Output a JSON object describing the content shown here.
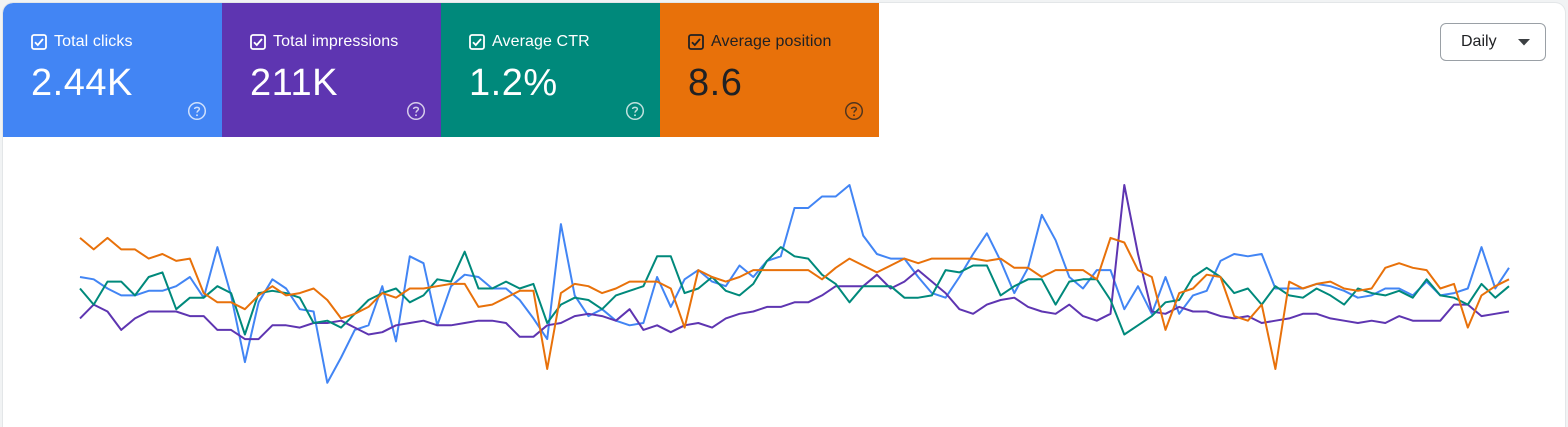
{
  "metrics": [
    {
      "label": "Total clicks",
      "value": "2.44K",
      "color": "#4285f4",
      "checked": true,
      "dark_text": false
    },
    {
      "label": "Total impressions",
      "value": "211K",
      "color": "#5e35b1",
      "checked": true,
      "dark_text": false
    },
    {
      "label": "Average CTR",
      "value": "1.2%",
      "color": "#00897b",
      "checked": true,
      "dark_text": false
    },
    {
      "label": "Average position",
      "value": "8.6",
      "color": "#e8710a",
      "checked": true,
      "dark_text": true
    }
  ],
  "icons": {
    "checkbox": "checkbox-checked-icon",
    "help": "help-circle-icon",
    "dropdown": "caret-down-icon"
  },
  "period_select": {
    "selected": "Daily"
  },
  "chart_data": {
    "type": "line",
    "title": "",
    "grid": false,
    "legend": "none",
    "ylim": [
      0,
      1
    ],
    "series": [
      {
        "metric": "Total clicks",
        "color": "#4285f4",
        "values": [
          0.6,
          0.59,
          0.55,
          0.52,
          0.52,
          0.54,
          0.54,
          0.56,
          0.6,
          0.51,
          0.73,
          0.52,
          0.23,
          0.49,
          0.59,
          0.55,
          0.46,
          0.45,
          0.14,
          0.25,
          0.37,
          0.39,
          0.56,
          0.32,
          0.69,
          0.66,
          0.39,
          0.56,
          0.61,
          0.6,
          0.55,
          0.55,
          0.5,
          0.42,
          0.33,
          0.83,
          0.52,
          0.43,
          0.46,
          0.41,
          0.39,
          0.4,
          0.6,
          0.47,
          0.59,
          0.63,
          0.58,
          0.56,
          0.65,
          0.6,
          0.67,
          0.69,
          0.9,
          0.9,
          0.95,
          0.95,
          1.0,
          0.78,
          0.7,
          0.68,
          0.68,
          0.6,
          0.53,
          0.51,
          0.6,
          0.7,
          0.79,
          0.67,
          0.53,
          0.64,
          0.87,
          0.76,
          0.6,
          0.55,
          0.63,
          0.63,
          0.46,
          0.56,
          0.44,
          0.6,
          0.44,
          0.52,
          0.54,
          0.67,
          0.7,
          0.69,
          0.7,
          0.55,
          0.55,
          0.55,
          0.57,
          0.56,
          0.54,
          0.51,
          0.52,
          0.55,
          0.55,
          0.52,
          0.58,
          0.52,
          0.53,
          0.55,
          0.73,
          0.55,
          0.64
        ]
      },
      {
        "metric": "Total impressions",
        "color": "#5e35b1",
        "values": [
          0.42,
          0.48,
          0.45,
          0.37,
          0.42,
          0.45,
          0.45,
          0.45,
          0.43,
          0.43,
          0.37,
          0.37,
          0.33,
          0.33,
          0.39,
          0.39,
          0.38,
          0.4,
          0.4,
          0.41,
          0.38,
          0.35,
          0.36,
          0.39,
          0.4,
          0.41,
          0.39,
          0.39,
          0.4,
          0.41,
          0.41,
          0.4,
          0.34,
          0.34,
          0.39,
          0.4,
          0.43,
          0.44,
          0.43,
          0.41,
          0.46,
          0.37,
          0.39,
          0.36,
          0.39,
          0.4,
          0.38,
          0.42,
          0.44,
          0.45,
          0.47,
          0.47,
          0.49,
          0.49,
          0.52,
          0.56,
          0.56,
          0.56,
          0.61,
          0.55,
          0.58,
          0.63,
          0.58,
          0.53,
          0.46,
          0.44,
          0.48,
          0.5,
          0.51,
          0.47,
          0.45,
          0.44,
          0.48,
          0.43,
          0.41,
          0.44,
          1.0,
          0.7,
          0.45,
          0.44,
          0.47,
          0.45,
          0.45,
          0.43,
          0.42,
          0.43,
          0.4,
          0.41,
          0.42,
          0.44,
          0.44,
          0.42,
          0.41,
          0.4,
          0.41,
          0.4,
          0.43,
          0.41,
          0.41,
          0.41,
          0.48,
          0.48,
          0.43,
          0.44,
          0.45
        ]
      },
      {
        "metric": "Average CTR",
        "color": "#00897b",
        "values": [
          0.55,
          0.48,
          0.58,
          0.58,
          0.52,
          0.6,
          0.62,
          0.46,
          0.51,
          0.51,
          0.56,
          0.53,
          0.35,
          0.53,
          0.54,
          0.53,
          0.51,
          0.4,
          0.41,
          0.38,
          0.44,
          0.5,
          0.53,
          0.55,
          0.49,
          0.52,
          0.59,
          0.58,
          0.71,
          0.55,
          0.55,
          0.58,
          0.55,
          0.57,
          0.4,
          0.48,
          0.51,
          0.5,
          0.46,
          0.52,
          0.54,
          0.56,
          0.69,
          0.69,
          0.53,
          0.55,
          0.6,
          0.54,
          0.52,
          0.57,
          0.67,
          0.73,
          0.69,
          0.68,
          0.61,
          0.57,
          0.49,
          0.56,
          0.56,
          0.56,
          0.51,
          0.51,
          0.52,
          0.63,
          0.62,
          0.65,
          0.65,
          0.52,
          0.56,
          0.59,
          0.59,
          0.48,
          0.58,
          0.59,
          0.59,
          0.5,
          0.35,
          0.39,
          0.43,
          0.49,
          0.5,
          0.6,
          0.64,
          0.6,
          0.53,
          0.55,
          0.48,
          0.56,
          0.52,
          0.51,
          0.55,
          0.52,
          0.48,
          0.55,
          0.53,
          0.52,
          0.54,
          0.51,
          0.59,
          0.52,
          0.51,
          0.48,
          0.57,
          0.51,
          0.56
        ]
      },
      {
        "metric": "Average position",
        "color": "#e8710a",
        "values": [
          0.77,
          0.72,
          0.77,
          0.72,
          0.72,
          0.68,
          0.7,
          0.67,
          0.68,
          0.53,
          0.49,
          0.49,
          0.46,
          0.52,
          0.56,
          0.52,
          0.53,
          0.55,
          0.5,
          0.42,
          0.44,
          0.47,
          0.53,
          0.51,
          0.55,
          0.55,
          0.56,
          0.57,
          0.57,
          0.47,
          0.48,
          0.51,
          0.54,
          0.54,
          0.2,
          0.53,
          0.57,
          0.56,
          0.53,
          0.55,
          0.58,
          0.58,
          0.58,
          0.55,
          0.38,
          0.63,
          0.6,
          0.58,
          0.6,
          0.63,
          0.63,
          0.63,
          0.63,
          0.63,
          0.59,
          0.64,
          0.68,
          0.65,
          0.62,
          0.65,
          0.68,
          0.66,
          0.68,
          0.68,
          0.68,
          0.68,
          0.67,
          0.68,
          0.64,
          0.64,
          0.6,
          0.63,
          0.63,
          0.63,
          0.59,
          0.77,
          0.75,
          0.63,
          0.6,
          0.37,
          0.53,
          0.55,
          0.61,
          0.6,
          0.43,
          0.41,
          0.48,
          0.2,
          0.58,
          0.55,
          0.57,
          0.58,
          0.55,
          0.54,
          0.55,
          0.64,
          0.66,
          0.64,
          0.63,
          0.55,
          0.57,
          0.38,
          0.52,
          0.56,
          0.59
        ]
      }
    ]
  }
}
